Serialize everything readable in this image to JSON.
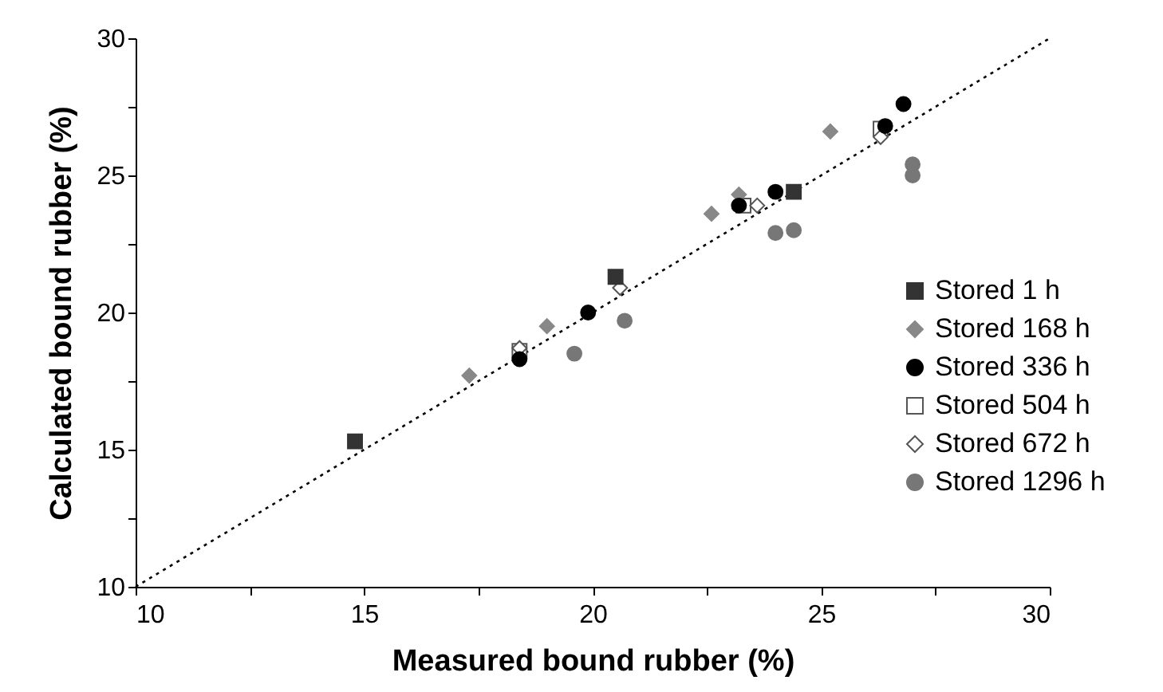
{
  "chart_data": {
    "type": "scatter",
    "xlabel": "Measured bound rubber (%)",
    "ylabel": "Calculated bound rubber (%)",
    "xlim": [
      10,
      30
    ],
    "ylim": [
      10,
      30
    ],
    "xticks": [
      10,
      {
        "value": 12.5,
        "label": null
      },
      15,
      {
        "value": 17.5,
        "label": null
      },
      20,
      {
        "value": 22.5,
        "label": null
      },
      25,
      {
        "value": 27.5,
        "label": null
      },
      30
    ],
    "yticks": [
      10,
      {
        "value": 12.5,
        "label": null
      },
      15,
      {
        "value": 17.5,
        "label": null
      },
      20,
      {
        "value": 22.5,
        "label": null
      },
      25,
      {
        "value": 27.5,
        "label": null
      },
      30
    ],
    "grid": false,
    "legend": "right",
    "series": [
      {
        "name": "Stored 1 h",
        "color": "#333333",
        "marker": "square",
        "x": [
          14.8,
          20.5,
          24.4
        ],
        "values": [
          15.3,
          21.3,
          24.4
        ]
      },
      {
        "name": "Stored 168 h",
        "color": "#888888",
        "marker": "diamond",
        "x": [
          17.3,
          19.0,
          22.6,
          23.2,
          25.2
        ],
        "values": [
          17.7,
          19.5,
          23.6,
          24.3,
          26.6
        ]
      },
      {
        "name": "Stored 336 h",
        "color": "#000000",
        "marker": "circle",
        "x": [
          18.4,
          19.9,
          23.2,
          24.0,
          26.4,
          26.8
        ],
        "values": [
          18.3,
          20.0,
          23.9,
          24.4,
          26.8,
          27.6
        ]
      },
      {
        "name": "Stored 504 h",
        "color": "#ffffff",
        "marker": "square",
        "x": [
          18.4,
          23.3,
          26.3
        ],
        "values": [
          18.6,
          23.9,
          26.7
        ]
      },
      {
        "name": "Stored 672 h",
        "color": "#ffffff",
        "marker": "diamond",
        "x": [
          18.4,
          20.6,
          23.6,
          26.3
        ],
        "values": [
          18.7,
          20.9,
          23.9,
          26.4
        ]
      },
      {
        "name": "Stored 1296 h",
        "color": "#777777",
        "marker": "circle",
        "x": [
          19.6,
          20.7,
          24.0,
          24.4,
          27.0,
          27.0
        ],
        "values": [
          18.5,
          19.7,
          22.9,
          23.0,
          25.4,
          25.0
        ]
      },
      {
        "type": "line",
        "color": "#000000",
        "line_style": "dotted",
        "marker": "none",
        "x": [
          10,
          30
        ],
        "values": [
          10,
          30
        ]
      }
    ]
  }
}
